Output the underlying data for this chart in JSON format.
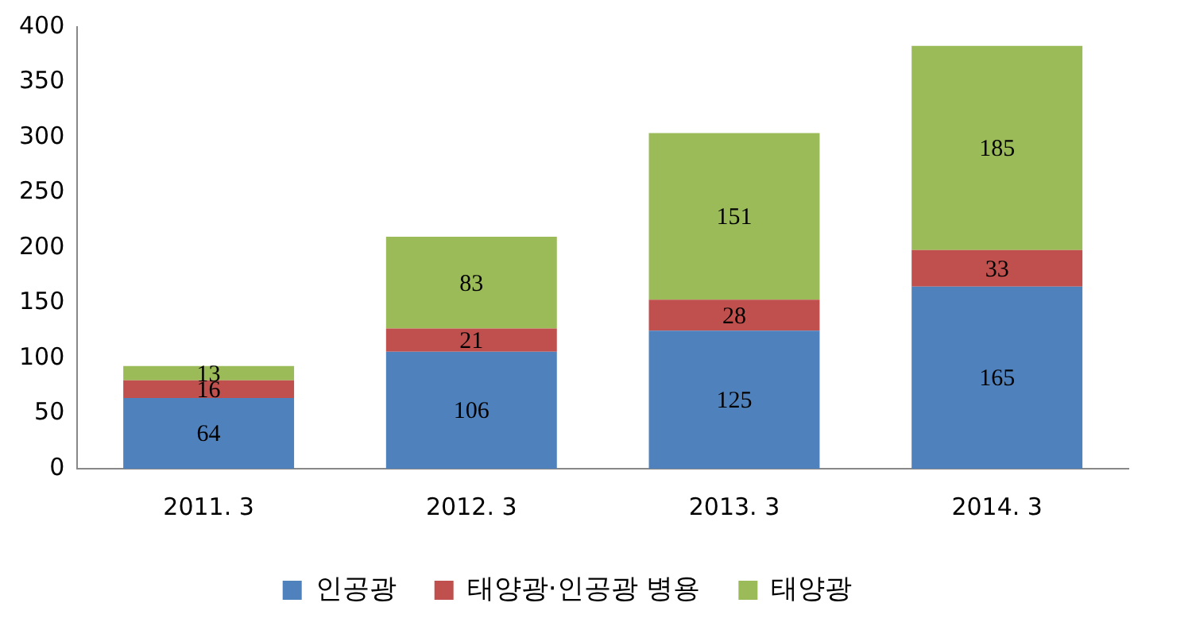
{
  "chart_data": {
    "type": "bar",
    "stacked": true,
    "categories": [
      "2011. 3",
      "2012. 3",
      "2013. 3",
      "2014. 3"
    ],
    "series": [
      {
        "name": "인공광",
        "color": "#4f81bd",
        "values": [
          64,
          106,
          125,
          165
        ]
      },
      {
        "name": "태양광·인공광 병용",
        "color": "#c0504d",
        "values": [
          16,
          21,
          28,
          33
        ]
      },
      {
        "name": "태양광",
        "color": "#9bbb59",
        "values": [
          13,
          83,
          151,
          185
        ]
      }
    ],
    "ylim": [
      0,
      400
    ],
    "yticks": [
      0,
      50,
      100,
      150,
      200,
      250,
      300,
      350,
      400
    ],
    "grid": false,
    "legend": "bottom",
    "data_labels": true
  }
}
